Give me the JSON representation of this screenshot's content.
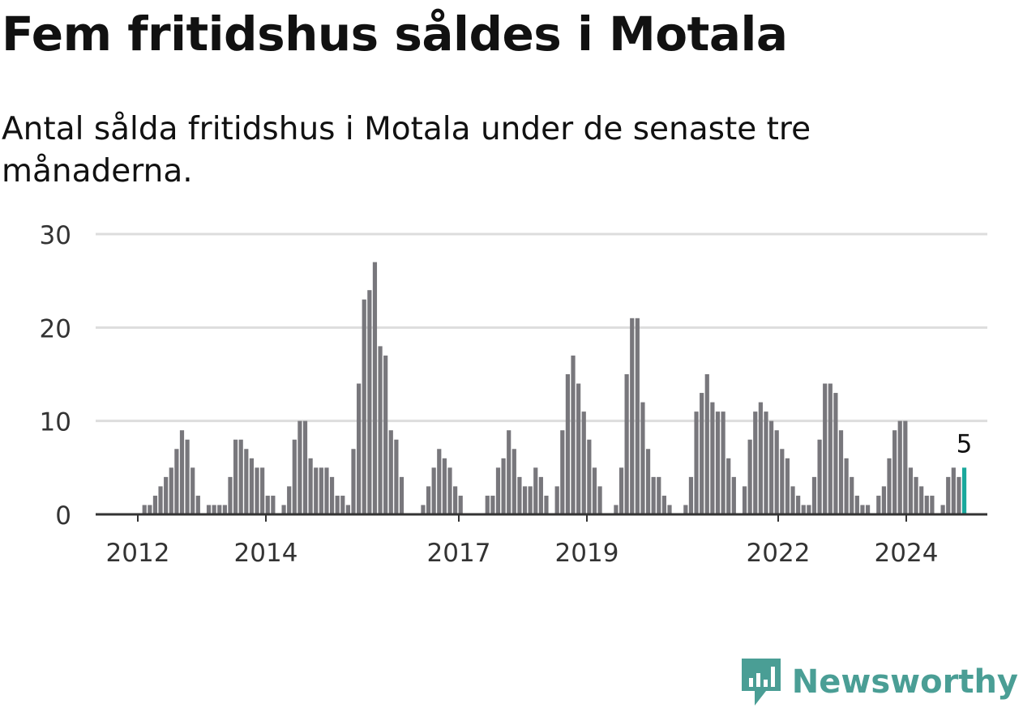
{
  "title": "Fem fritidshus såldes i Motala",
  "subtitle": "Antal sålda fritidshus i Motala under de senaste tre månaderna.",
  "brand": {
    "name": "Newsworthy"
  },
  "colors": {
    "bar": "#78777c",
    "highlight": "#1aa89c",
    "grid": "#dddddd",
    "axis": "#333333",
    "brand": "#4a9e95"
  },
  "chart_data": {
    "type": "bar",
    "x_ticks": [
      "2012",
      "2014",
      "2017",
      "2019",
      "2022",
      "2024"
    ],
    "y_ticks": [
      "0",
      "10",
      "20",
      "30"
    ],
    "ylim": [
      0,
      30
    ],
    "grid": true,
    "values": [
      0,
      0,
      1,
      1,
      2,
      3,
      4,
      5,
      7,
      9,
      8,
      5,
      2,
      0,
      1,
      1,
      1,
      1,
      4,
      8,
      8,
      7,
      6,
      5,
      5,
      2,
      2,
      0,
      1,
      3,
      8,
      10,
      10,
      6,
      5,
      5,
      5,
      4,
      2,
      2,
      1,
      7,
      14,
      23,
      24,
      27,
      18,
      17,
      9,
      8,
      4,
      0,
      0,
      0,
      1,
      3,
      5,
      7,
      6,
      5,
      3,
      2,
      0,
      0,
      0,
      0,
      2,
      2,
      5,
      6,
      9,
      7,
      4,
      3,
      3,
      5,
      4,
      2,
      0,
      3,
      9,
      15,
      17,
      14,
      11,
      8,
      5,
      3,
      0,
      0,
      1,
      5,
      15,
      21,
      21,
      12,
      7,
      4,
      4,
      2,
      1,
      0,
      0,
      1,
      4,
      11,
      13,
      15,
      12,
      11,
      11,
      6,
      4,
      0,
      3,
      8,
      11,
      12,
      11,
      10,
      9,
      7,
      6,
      3,
      2,
      1,
      1,
      4,
      8,
      14,
      14,
      13,
      9,
      6,
      4,
      2,
      1,
      1,
      0,
      2,
      3,
      6,
      9,
      10,
      10,
      5,
      4,
      3,
      2,
      2,
      0,
      1,
      4,
      5,
      4,
      5
    ],
    "highlight_label": "5"
  }
}
